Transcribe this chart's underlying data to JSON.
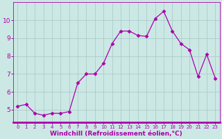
{
  "x": [
    0,
    1,
    2,
    3,
    4,
    5,
    6,
    7,
    8,
    9,
    10,
    11,
    12,
    13,
    14,
    15,
    16,
    17,
    18,
    19,
    20,
    21,
    22,
    23
  ],
  "y": [
    5.2,
    5.3,
    4.8,
    4.7,
    4.8,
    4.8,
    4.9,
    6.5,
    7.0,
    7.0,
    7.6,
    8.7,
    9.4,
    9.4,
    9.15,
    9.1,
    10.1,
    10.5,
    9.4,
    8.7,
    8.35,
    6.85,
    8.1,
    6.75
  ],
  "line_color": "#aa00aa",
  "marker": "D",
  "marker_size": 2.5,
  "plot_bg_color": "#cce8e4",
  "fig_bg_color": "#cce8e4",
  "grid_color": "#aacccc",
  "xlabel": "Windchill (Refroidissement éolien,°C)",
  "ylim": [
    4.3,
    11.0
  ],
  "xlim": [
    -0.5,
    23.5
  ],
  "yticks": [
    5,
    6,
    7,
    8,
    9,
    10
  ],
  "xticks": [
    0,
    1,
    2,
    3,
    4,
    5,
    6,
    7,
    8,
    9,
    10,
    11,
    12,
    13,
    14,
    15,
    16,
    17,
    18,
    19,
    20,
    21,
    22,
    23
  ],
  "tick_color": "#aa00aa",
  "label_color": "#aa00aa",
  "spine_color": "#aa00aa",
  "xtick_fontsize": 5.0,
  "ytick_fontsize": 6.5,
  "xlabel_fontsize": 6.5
}
